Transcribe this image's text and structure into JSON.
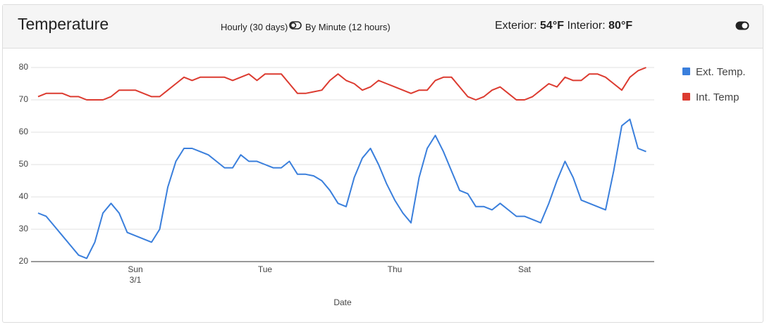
{
  "header": {
    "title": "Temperature",
    "mode_hourly": "Hourly (30 days)",
    "mode_minute": "By Minute (12 hours)",
    "exterior_label": "Exterior:",
    "exterior_value": "54°F",
    "interior_label": "Interior:",
    "interior_value": "80°F"
  },
  "chart_data": {
    "type": "line",
    "xlabel": "Date",
    "date_sublabel": "3/1",
    "categories": [
      null,
      null,
      null,
      null,
      null,
      null,
      null,
      null,
      null,
      null,
      null,
      null,
      "Sun",
      null,
      null,
      null,
      null,
      null,
      null,
      null,
      null,
      null,
      null,
      null,
      null,
      null,
      null,
      null,
      "Tue",
      null,
      null,
      null,
      null,
      null,
      null,
      null,
      null,
      null,
      null,
      null,
      null,
      null,
      null,
      null,
      "Thu",
      null,
      null,
      null,
      null,
      null,
      null,
      null,
      null,
      null,
      null,
      null,
      null,
      null,
      null,
      null,
      "Sat",
      null,
      null,
      null,
      null,
      null,
      null,
      null,
      null,
      null,
      null,
      null,
      null,
      null,
      null,
      null
    ],
    "series": [
      {
        "name": "Ext. Temp.",
        "color": "#3a7fdc",
        "values": [
          35,
          34,
          31,
          28,
          25,
          22,
          21,
          26,
          35,
          38,
          35,
          29,
          28,
          27,
          26,
          30,
          43,
          51,
          55,
          55,
          54,
          53,
          51,
          49,
          49,
          53,
          51,
          51,
          50,
          49,
          49,
          51,
          47,
          47,
          46.5,
          45,
          42,
          38,
          37,
          46,
          52,
          55,
          50,
          44,
          39,
          35,
          32,
          46,
          55,
          59,
          54,
          48,
          42,
          41,
          37,
          37,
          36,
          38,
          36,
          34,
          34,
          33,
          32,
          38,
          45,
          51,
          46,
          39,
          38,
          37,
          36,
          48,
          62,
          64,
          55,
          54
        ]
      },
      {
        "name": "Int. Temp",
        "color": "#dc3b30",
        "values": [
          71,
          72,
          72,
          72,
          71,
          71,
          70,
          70,
          70,
          71,
          73,
          73,
          73,
          72,
          71,
          71,
          73,
          75,
          77,
          76,
          77,
          77,
          77,
          77,
          76,
          77,
          78,
          76,
          78,
          78,
          78,
          75,
          72,
          72,
          72.5,
          73,
          76,
          78,
          76,
          75,
          73,
          74,
          76,
          75,
          74,
          73,
          72,
          73,
          73,
          76,
          77,
          77,
          74,
          71,
          70,
          71,
          73,
          74,
          72,
          70,
          70,
          71,
          73,
          75,
          74,
          77,
          76,
          76,
          78,
          78,
          77,
          75,
          73,
          77,
          79,
          80
        ]
      }
    ],
    "ylim": [
      20,
      80
    ],
    "yticks": [
      20,
      30,
      40,
      50,
      60,
      70,
      80
    ],
    "grid": true,
    "legend": "right"
  }
}
